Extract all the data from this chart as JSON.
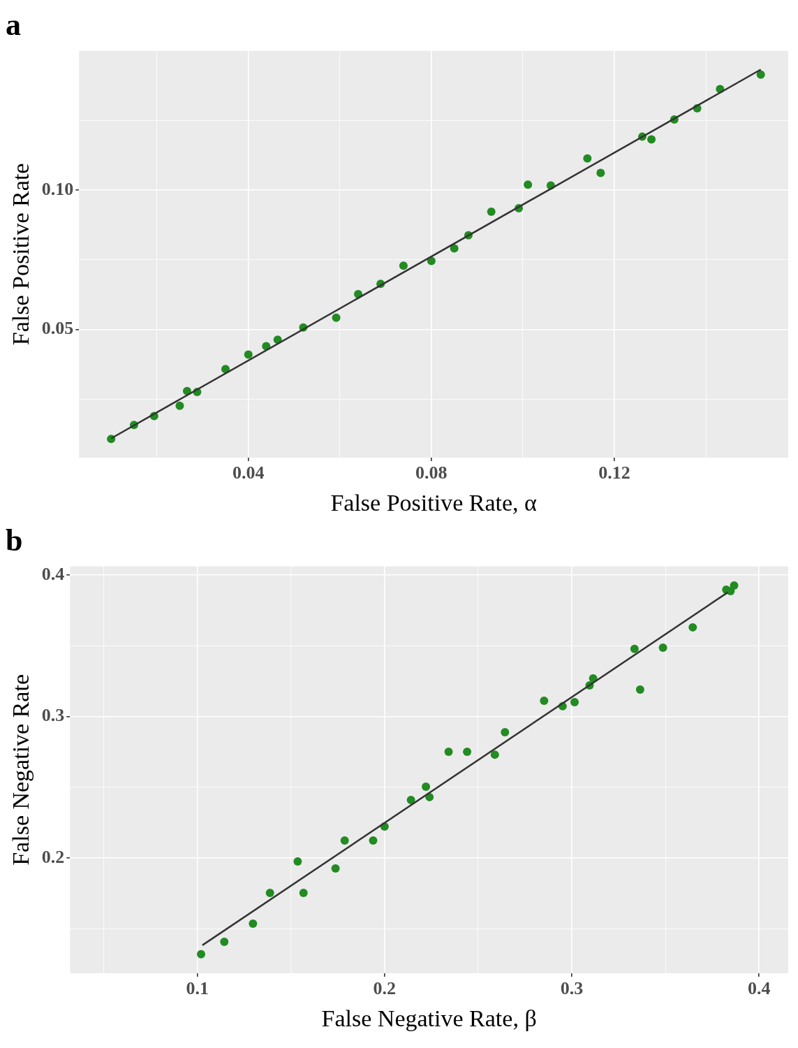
{
  "chart_data": [
    {
      "type": "scatter",
      "title": "a",
      "xlabel": "False Positive Rate, α",
      "ylabel": "False Positive Rate",
      "xlim": [
        0.003,
        0.158
      ],
      "ylim": [
        0.004,
        0.15
      ],
      "xticks": [
        {
          "value": 0.02,
          "label": null
        },
        0.04,
        {
          "value": 0.06,
          "label": null
        },
        0.08,
        {
          "value": 0.1,
          "label": null
        },
        0.12,
        {
          "value": 0.14,
          "label": null
        }
      ],
      "yticks": [
        {
          "value": 0.025,
          "label": null
        },
        0.05,
        {
          "value": 0.075,
          "label": null
        },
        {
          "value": 0.1,
          "label": "0.10"
        },
        {
          "value": 0.125,
          "label": null
        }
      ],
      "grid": true,
      "marker": "circle",
      "series": [
        {
          "type": "scatter",
          "color": "#228b22",
          "x": [
            0.01,
            0.015,
            0.0194,
            0.025,
            0.0266,
            0.0288,
            0.035,
            0.04,
            0.0439,
            0.0464,
            0.052,
            0.0592,
            0.064,
            0.0689,
            0.0739,
            0.08,
            0.085,
            0.0881,
            0.0931,
            0.0991,
            0.1011,
            0.1061,
            0.1141,
            0.117,
            0.1261,
            0.1281,
            0.1331,
            0.1381,
            0.1431,
            0.152
          ],
          "values": [
            0.0107,
            0.0157,
            0.0189,
            0.0226,
            0.0279,
            0.0276,
            0.0358,
            0.041,
            0.044,
            0.0463,
            0.0507,
            0.0542,
            0.0627,
            0.0664,
            0.0729,
            0.0746,
            0.0791,
            0.0838,
            0.0923,
            0.0935,
            0.102,
            0.1017,
            0.1114,
            0.1062,
            0.1192,
            0.1182,
            0.1254,
            0.1294,
            0.1363,
            0.1415
          ]
        },
        {
          "type": "line",
          "color": "#333333",
          "marker": "none",
          "x": [
            0.01,
            0.152
          ],
          "values": [
            0.0109,
            0.1433
          ]
        }
      ]
    },
    {
      "type": "scatter",
      "title": "b",
      "xlabel": "False Negative Rate, β",
      "ylabel": "False Negative Rate",
      "xlim": [
        0.032,
        0.4156
      ],
      "ylim": [
        0.1185,
        0.406
      ],
      "xticks": [
        {
          "value": 0.05,
          "label": null
        },
        0.1,
        {
          "value": 0.15,
          "label": null
        },
        0.2,
        {
          "value": 0.25,
          "label": null
        },
        0.3,
        {
          "value": 0.35,
          "label": null
        },
        0.4
      ],
      "yticks": [
        {
          "value": 0.15,
          "label": null
        },
        0.2,
        {
          "value": 0.25,
          "label": null
        },
        0.3,
        {
          "value": 0.35,
          "label": null
        },
        0.4
      ],
      "grid": true,
      "marker": "circle",
      "series": [
        {
          "type": "scatter",
          "color": "#228b22",
          "x": [
            0.102,
            0.1144,
            0.1297,
            0.1388,
            0.1536,
            0.1567,
            0.1738,
            0.1787,
            0.1939,
            0.2,
            0.2141,
            0.2221,
            0.224,
            0.2342,
            0.2441,
            0.2589,
            0.2643,
            0.2852,
            0.2951,
            0.3015,
            0.3095,
            0.3114,
            0.3335,
            0.3365,
            0.3487,
            0.3646,
            0.3825,
            0.3848,
            0.3867
          ],
          "values": [
            0.132,
            0.1407,
            0.1536,
            0.1753,
            0.1975,
            0.1753,
            0.1926,
            0.2123,
            0.2123,
            0.2222,
            0.241,
            0.2504,
            0.243,
            0.275,
            0.275,
            0.273,
            0.2889,
            0.3111,
            0.3072,
            0.3101,
            0.322,
            0.3269,
            0.3477,
            0.319,
            0.3486,
            0.363,
            0.3896,
            0.3886,
            0.3926
          ]
        },
        {
          "type": "line",
          "color": "#333333",
          "marker": "none",
          "x": [
            0.1027,
            0.3833
          ],
          "values": [
            0.1383,
            0.3877
          ]
        }
      ]
    }
  ]
}
